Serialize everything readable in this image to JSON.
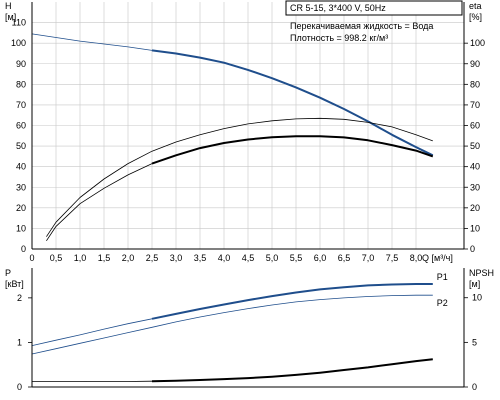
{
  "info": {
    "header": "CR 5-15, 3*400 V, 50Hz",
    "liquid": "Перекачиваемая жидкость = Вода",
    "density": "Плотность = 998.2 кг/м³"
  },
  "colors": {
    "background": "#ffffff",
    "grid": "#c8c8c8",
    "head_curve": "#1f4e8c",
    "efficiency_curve": "#000000",
    "power_p1": "#1f4e8c",
    "power_p2": "#1f4e8c",
    "npsh": "#000000"
  },
  "chart_data": [
    {
      "type": "line",
      "title": "",
      "xlabel": "Q [м³/ч]",
      "ylabel_left": "H\n[м]",
      "ylabel_right": "eta\n[%]",
      "xlim": [
        0,
        9
      ],
      "ylim_left": [
        0,
        120
      ],
      "ylim_right": [
        0,
        120
      ],
      "x_ticks": [
        "0",
        "0,5",
        "1,0",
        "1,5",
        "2,0",
        "2,5",
        "3,0",
        "3,5",
        "4,0",
        "4,5",
        "5,0",
        "5,5",
        "6,0",
        "6,5",
        "7,0",
        "7,5",
        "8,0"
      ],
      "x_tick_values": [
        0,
        0.5,
        1,
        1.5,
        2,
        2.5,
        3,
        3.5,
        4,
        4.5,
        5,
        5.5,
        6,
        6.5,
        7,
        7.5,
        8
      ],
      "y_ticks_left": [
        0,
        10,
        20,
        30,
        40,
        50,
        60,
        70,
        80,
        90,
        100,
        110
      ],
      "y_ticks_right": [
        0,
        10,
        20,
        30,
        40,
        50,
        60,
        70,
        80,
        90,
        100
      ],
      "grid": true,
      "series": [
        {
          "axis": "left",
          "style": "thin",
          "x": [
            0,
            1,
            2,
            2.5
          ],
          "y": [
            104.5,
            101,
            98.2,
            96.5
          ]
        },
        {
          "axis": "left",
          "style": "thick",
          "x": [
            2.5,
            3,
            3.5,
            4,
            4.5,
            5,
            5.5,
            6,
            6.5,
            7,
            7.5,
            8,
            8.35
          ],
          "y": [
            96.5,
            95,
            93,
            90.5,
            87,
            83,
            78.5,
            73.5,
            68,
            62,
            55.5,
            49.5,
            45.5
          ]
        },
        {
          "axis": "right",
          "style": "thin",
          "x": [
            0.3,
            0.5,
            1,
            1.5,
            2,
            2.5,
            3,
            3.5,
            4,
            4.5,
            5,
            5.5,
            6,
            6.5,
            7,
            7.5,
            8,
            8.35
          ],
          "y": [
            6,
            13,
            25,
            34,
            41.5,
            47.5,
            52,
            55.5,
            58.5,
            60.8,
            62.3,
            63.2,
            63.5,
            63,
            61.5,
            59.3,
            55.5,
            52.5
          ]
        },
        {
          "axis": "right",
          "style": "thin",
          "x": [
            0.3,
            0.5,
            1,
            1.5,
            2,
            2.5
          ],
          "y": [
            4,
            11,
            22,
            29.5,
            36,
            41.5
          ]
        },
        {
          "axis": "right",
          "style": "thick",
          "x": [
            2.5,
            3,
            3.5,
            4,
            4.5,
            5,
            5.5,
            6,
            6.5,
            7,
            7.5,
            8,
            8.35
          ],
          "y": [
            41.5,
            45.5,
            49,
            51.5,
            53.2,
            54.3,
            54.8,
            54.8,
            54.2,
            52.8,
            50.5,
            47.8,
            45
          ]
        }
      ]
    },
    {
      "type": "line",
      "title": "",
      "xlabel": "",
      "ylabel_left": "P\n[кВт]",
      "ylabel_right": "NPSH\n[м]",
      "xlim": [
        0,
        9
      ],
      "ylim_left": [
        0,
        2.67
      ],
      "ylim_right": [
        0,
        13.33
      ],
      "y_ticks_left": [
        0,
        1,
        2
      ],
      "y_ticks_right": [
        0,
        5,
        10
      ],
      "grid": false,
      "series": [
        {
          "name": "P1",
          "axis": "left",
          "style": "thin",
          "x": [
            0,
            0.5,
            1,
            1.5,
            2,
            2.5
          ],
          "y": [
            0.93,
            1.05,
            1.17,
            1.3,
            1.42,
            1.53
          ]
        },
        {
          "name": "P1",
          "axis": "left",
          "style": "thick",
          "x": [
            2.5,
            3,
            3.5,
            4,
            4.5,
            5,
            5.5,
            6,
            6.5,
            7,
            7.5,
            8,
            8.35
          ],
          "y": [
            1.53,
            1.64,
            1.75,
            1.85,
            1.95,
            2.04,
            2.12,
            2.19,
            2.24,
            2.28,
            2.3,
            2.31,
            2.31
          ]
        },
        {
          "name": "P2",
          "axis": "left",
          "style": "thin",
          "x": [
            0,
            0.5,
            1,
            1.5,
            2,
            2.5,
            3,
            3.5,
            4,
            4.5,
            5,
            5.5,
            6,
            6.5,
            7,
            7.5,
            8,
            8.35
          ],
          "y": [
            0.74,
            0.86,
            0.98,
            1.1,
            1.22,
            1.34,
            1.46,
            1.57,
            1.67,
            1.76,
            1.84,
            1.91,
            1.96,
            2.0,
            2.03,
            2.05,
            2.06,
            2.06
          ]
        },
        {
          "axis": "right",
          "style": "thin",
          "x": [
            0,
            1,
            2,
            2.5
          ],
          "y": [
            0.6,
            0.6,
            0.62,
            0.65
          ]
        },
        {
          "axis": "right",
          "style": "thick",
          "x": [
            2.5,
            3,
            3.5,
            4,
            4.5,
            5,
            5.5,
            6,
            6.5,
            7,
            7.5,
            8,
            8.35
          ],
          "y": [
            0.65,
            0.7,
            0.78,
            0.88,
            1.0,
            1.15,
            1.35,
            1.6,
            1.9,
            2.2,
            2.55,
            2.9,
            3.1
          ]
        }
      ]
    }
  ]
}
